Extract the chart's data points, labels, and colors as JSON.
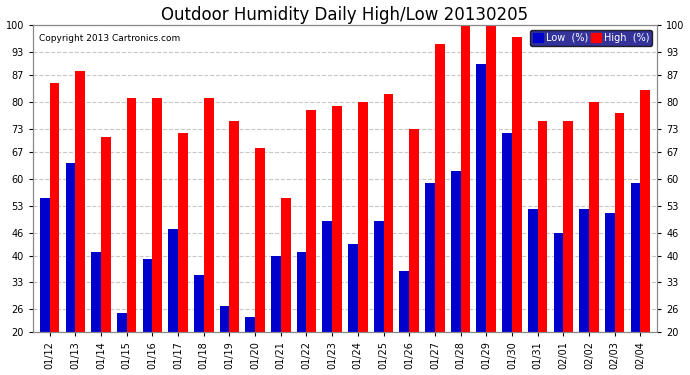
{
  "title": "Outdoor Humidity Daily High/Low 20130205",
  "copyright": "Copyright 2013 Cartronics.com",
  "dates": [
    "01/12",
    "01/13",
    "01/14",
    "01/15",
    "01/16",
    "01/17",
    "01/18",
    "01/19",
    "01/20",
    "01/21",
    "01/22",
    "01/23",
    "01/24",
    "01/25",
    "01/26",
    "01/27",
    "01/28",
    "01/29",
    "01/30",
    "01/31",
    "02/01",
    "02/02",
    "02/03",
    "02/04"
  ],
  "high": [
    85,
    88,
    71,
    81,
    81,
    72,
    81,
    75,
    68,
    55,
    78,
    79,
    80,
    82,
    73,
    95,
    101,
    101,
    97,
    75,
    75,
    80,
    77,
    83
  ],
  "low": [
    55,
    64,
    41,
    25,
    39,
    47,
    35,
    27,
    24,
    40,
    41,
    49,
    43,
    49,
    36,
    59,
    62,
    90,
    72,
    52,
    46,
    52,
    51,
    59
  ],
  "high_color": "#ff0000",
  "low_color": "#0000cc",
  "bg_color": "#ffffff",
  "grid_color": "#c8c8c8",
  "ymin": 20,
  "ymax": 100,
  "yticks": [
    20,
    26,
    33,
    40,
    46,
    53,
    60,
    67,
    73,
    80,
    87,
    93,
    100
  ],
  "title_fontsize": 12,
  "tick_fontsize": 7,
  "legend_low_label": "Low  (%)",
  "legend_high_label": "High  (%)",
  "legend_bg": "#000080"
}
